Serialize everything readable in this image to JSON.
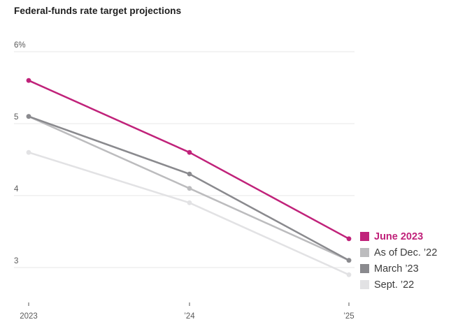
{
  "chart_data": {
    "type": "line",
    "title": "Federal-funds rate target projections",
    "xlabel": "",
    "ylabel": "",
    "unit_suffix_on_top_tick": "%",
    "x_categories": [
      "2023",
      "’24",
      "’25"
    ],
    "x_tick_labels": [
      "2023",
      "’24",
      "’25"
    ],
    "y_tick_values": [
      6,
      5,
      4,
      3
    ],
    "y_tick_labels": [
      "6%",
      "5",
      "4",
      "3"
    ],
    "ylim": [
      2.75,
      6.1
    ],
    "grid": "horizontal",
    "legend_position": "right",
    "series": [
      {
        "id": "june-2023",
        "name": "June 2023",
        "values": [
          5.6,
          4.6,
          3.4
        ],
        "color": "#c0227a",
        "label_color": "#c0227a",
        "emphasis": true
      },
      {
        "id": "as-of-dec-22",
        "name": "As of Dec. ’22",
        "values": [
          5.1,
          4.1,
          3.1
        ],
        "color": "#bcbcbe",
        "label_color": "#3b3b3b",
        "emphasis": false
      },
      {
        "id": "march-23",
        "name": "March ’23",
        "values": [
          5.1,
          4.3,
          3.1
        ],
        "color": "#8a8a8e",
        "label_color": "#3b3b3b",
        "emphasis": false
      },
      {
        "id": "sept-22",
        "name": "Sept. ’22",
        "values": [
          4.6,
          3.9,
          2.9
        ],
        "color": "#e2e2e4",
        "label_color": "#3b3b3b",
        "emphasis": false
      }
    ],
    "draw_order": [
      3,
      1,
      2,
      0
    ],
    "colors": {
      "gridline": "#efefef",
      "axis_text": "#5a5a5a",
      "tick_mark": "#555555",
      "title_text": "#1d1d1d"
    }
  }
}
